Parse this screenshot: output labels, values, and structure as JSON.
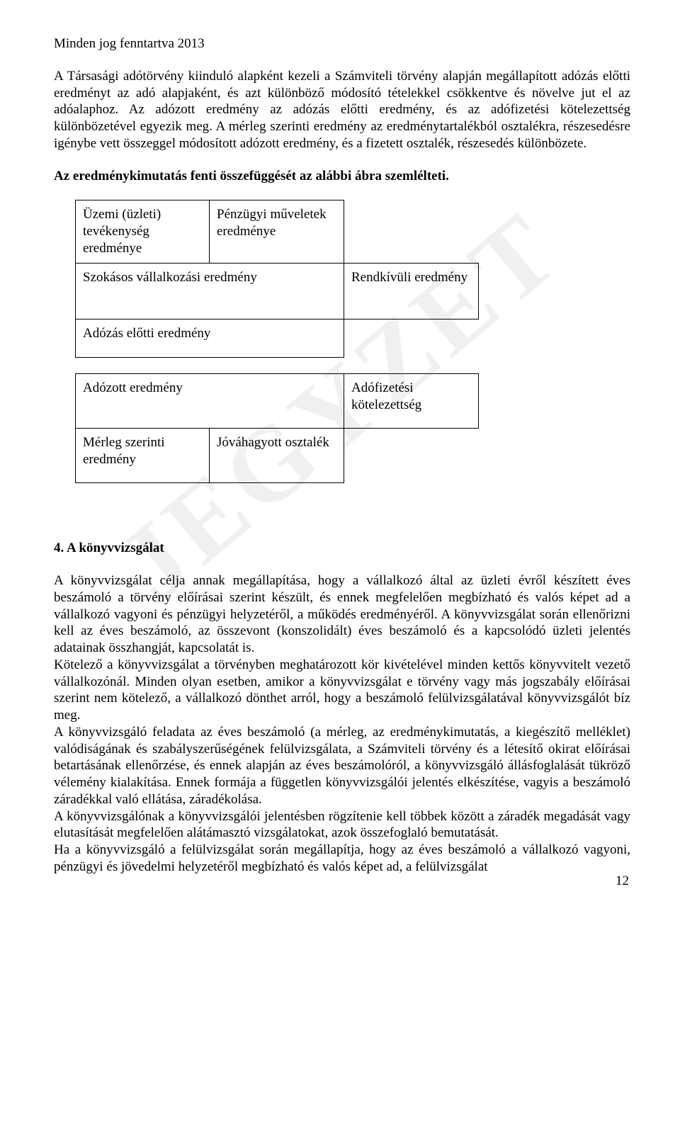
{
  "header": "Minden jog fenntartva 2013",
  "watermark": "JEGYZET",
  "para1": "A Társasági adótörvény kiinduló alapként kezeli a Számviteli törvény alapján megállapított adózás előtti eredményt az adó alapjaként, és azt különböző módosító tételekkel csökkentve és növelve jut el az adóalaphoz. Az adózott eredmény az adózás előtti eredmény, és az adófizetési kötelezettség különbözetével egyezik meg. A mérleg szerinti eredmény az eredménytartalékból osztalékra, részesedésre igénybe vett összeggel módosított adózott eredmény, és a fizetett osztalék, részesedés különbözete.",
  "para2": "Az eredménykimutatás fenti összefüggését az alábbi ábra szemlélteti.",
  "diagram": {
    "r1c1": "Üzemi (üzleti) tevékenység eredménye",
    "r1c2": "Pénzügyi műveletek eredménye",
    "r2c1": "Szokásos vállalkozási eredmény",
    "r2c2": "Rendkívüli eredmény",
    "r3c1": "Adózás előtti eredmény",
    "r4c1": "Adózott eredmény",
    "r4c2": "Adófizetési kötelezettség",
    "r5c1": "Mérleg szerinti eredmény",
    "r5c2": "Jóváhagyott osztalék"
  },
  "section4_heading": "4. A könyvvizsgálat",
  "section4_p1": "A könyvvizsgálat célja annak megállapítása, hogy a vállalkozó által az üzleti évről készített éves beszámoló a törvény előírásai szerint készült, és ennek megfelelően megbízható és valós képet ad a vállalkozó vagyoni és pénzügyi helyzetéről, a működés eredményéről. A könyvvizsgálat során ellenőrizni kell az éves beszámoló, az összevont (konszolidált) éves beszámoló és a kapcsolódó üzleti jelentés adatainak összhangját, kapcsolatát is.",
  "section4_p2": "Kötelező a könyvvizsgálat a törvényben meghatározott kör kivételével minden kettős könyvvitelt vezető vállalkozónál. Minden olyan esetben, amikor a könyvvizsgálat e törvény vagy más jogszabály előírásai szerint nem kötelező, a vállalkozó dönthet arról, hogy a beszámoló felülvizsgálatával könyvvizsgálót bíz meg.",
  "section4_p3": "A könyvvizsgáló feladata az éves beszámoló (a mérleg, az eredménykimutatás, a kiegészítő melléklet) valódiságának és szabályszerűségének felülvizsgálata, a Számviteli törvény és a létesítő okirat előírásai betartásának ellenőrzése, és ennek alapján az éves beszámolóról, a könyvvizsgáló állásfoglalását tükröző vélemény kialakítása. Ennek formája a független könyvvizsgálói jelentés elkészítése, vagyis a beszámoló záradékkal való ellátása, záradékolása.",
  "section4_p4": "A könyvvizsgálónak a könyvvizsgálói jelentésben rögzítenie kell többek között a záradék megadását vagy elutasítását megfelelően alátámasztó vizsgálatokat, azok összefoglaló bemutatását.",
  "section4_p5": "Ha a könyvvizsgáló a felülvizsgálat során megállapítja, hogy az éves beszámoló a vállalkozó vagyoni, pénzügyi és jövedelmi helyzetéről megbízható és valós képet ad, a felülvizsgálat",
  "page_number": "12"
}
